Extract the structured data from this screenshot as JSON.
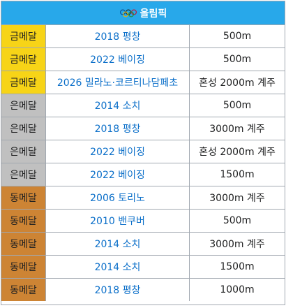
{
  "header": {
    "title": "올림픽",
    "icon": "olympic-rings-icon"
  },
  "colors": {
    "header_bg": "#28a8ea",
    "gold": "#f7d417",
    "silver": "#c0c0c0",
    "bronze": "#cd8434",
    "link": "#0b6fc9"
  },
  "rows": [
    {
      "medal": "금메달",
      "tier": "gold",
      "event": "2018 평창",
      "detail": "500m"
    },
    {
      "medal": "금메달",
      "tier": "gold",
      "event": "2022 베이징",
      "detail": "500m"
    },
    {
      "medal": "금메달",
      "tier": "gold",
      "event": "2026 밀라노·코르티나담페초",
      "detail": "혼성 2000m 계주"
    },
    {
      "medal": "은메달",
      "tier": "silver",
      "event": "2014 소치",
      "detail": "500m"
    },
    {
      "medal": "은메달",
      "tier": "silver",
      "event": "2018 평창",
      "detail": "3000m 계주"
    },
    {
      "medal": "은메달",
      "tier": "silver",
      "event": "2022 베이징",
      "detail": "혼성 2000m 계주"
    },
    {
      "medal": "은메달",
      "tier": "silver",
      "event": "2022 베이징",
      "detail": "1500m"
    },
    {
      "medal": "동메달",
      "tier": "bronze",
      "event": "2006 토리노",
      "detail": "3000m 계주"
    },
    {
      "medal": "동메달",
      "tier": "bronze",
      "event": "2010 밴쿠버",
      "detail": "500m"
    },
    {
      "medal": "동메달",
      "tier": "bronze",
      "event": "2014 소치",
      "detail": "3000m 계주"
    },
    {
      "medal": "동메달",
      "tier": "bronze",
      "event": "2014 소치",
      "detail": "1500m"
    },
    {
      "medal": "동메달",
      "tier": "bronze",
      "event": "2018 평창",
      "detail": "1000m"
    }
  ]
}
